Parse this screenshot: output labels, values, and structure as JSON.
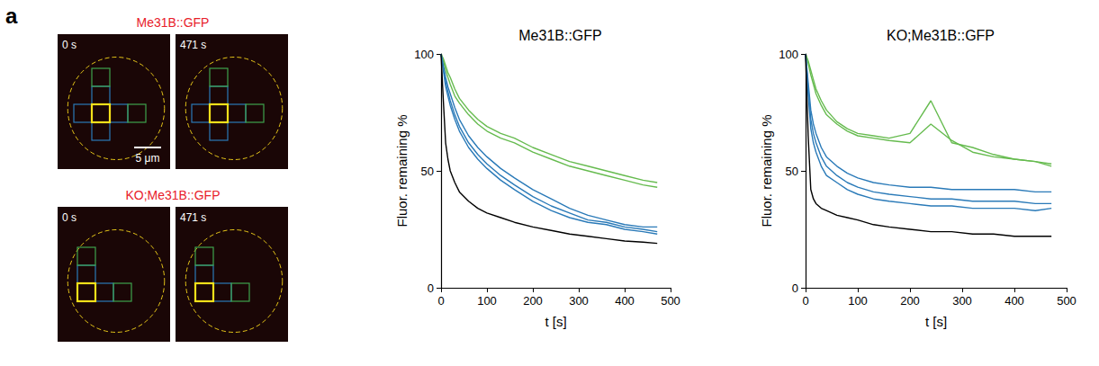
{
  "figure": {
    "panel_letter": "a",
    "images": [
      {
        "title": "Me31B::GFP",
        "frames": [
          "0 s",
          "471 s"
        ],
        "scale_bar": "5 μm"
      },
      {
        "title": "KO;Me31B::GFP",
        "frames": [
          "0 s",
          "471 s"
        ]
      }
    ]
  },
  "chart_data": [
    {
      "type": "line",
      "title": "Me31B::GFP",
      "x_label": "t [s]",
      "y_label": "Fluor. remaining %",
      "x": [
        0,
        5,
        10,
        15,
        20,
        30,
        40,
        60,
        80,
        100,
        130,
        160,
        200,
        240,
        280,
        320,
        360,
        400,
        440,
        471
      ],
      "xlim": [
        0,
        500
      ],
      "xticks": [
        0,
        100,
        200,
        300,
        400,
        500
      ],
      "ylim": [
        0,
        100
      ],
      "yticks": [
        0,
        50,
        100
      ],
      "grid": false,
      "series": [
        {
          "color": "#66bb4f",
          "values": [
            100,
            97,
            93,
            90,
            87,
            82,
            79,
            74,
            70,
            67,
            64,
            62,
            58,
            55,
            52,
            50,
            48,
            46,
            44,
            43
          ]
        },
        {
          "color": "#66bb4f",
          "values": [
            100,
            98,
            95,
            92,
            90,
            85,
            81,
            76,
            72,
            69,
            66,
            64,
            60,
            57,
            54,
            52,
            50,
            48,
            46,
            45
          ]
        },
        {
          "color": "#2a7ab8",
          "values": [
            100,
            93,
            86,
            82,
            78,
            72,
            67,
            60,
            55,
            51,
            46,
            42,
            37,
            33,
            30,
            28,
            27,
            25,
            24,
            23
          ]
        },
        {
          "color": "#2a7ab8",
          "values": [
            100,
            94,
            88,
            84,
            80,
            74,
            69,
            62,
            57,
            53,
            48,
            44,
            39,
            35,
            32,
            29,
            28,
            26,
            25,
            24
          ]
        },
        {
          "color": "#2a7ab8",
          "values": [
            100,
            95,
            90,
            86,
            83,
            77,
            72,
            65,
            60,
            56,
            51,
            47,
            42,
            38,
            34,
            31,
            29,
            27,
            26,
            26
          ]
        },
        {
          "color": "#000000",
          "values": [
            100,
            80,
            62,
            55,
            50,
            45,
            41,
            37,
            34,
            32,
            30,
            28,
            26,
            24.5,
            23,
            22,
            21,
            20,
            19.5,
            19
          ]
        }
      ]
    },
    {
      "type": "line",
      "title": "KO;Me31B::GFP",
      "x_label": "t [s]",
      "y_label": "Fluor. remaining %",
      "x": [
        0,
        5,
        10,
        15,
        20,
        30,
        40,
        60,
        80,
        100,
        130,
        160,
        200,
        240,
        280,
        320,
        360,
        400,
        440,
        471
      ],
      "xlim": [
        0,
        500
      ],
      "xticks": [
        0,
        100,
        200,
        300,
        400,
        500
      ],
      "ylim": [
        0,
        100
      ],
      "yticks": [
        0,
        50,
        100
      ],
      "grid": false,
      "series": [
        {
          "color": "#66bb4f",
          "values": [
            100,
            97,
            93,
            89,
            85,
            80,
            76,
            71,
            68,
            66,
            65,
            64,
            66,
            80,
            62,
            60,
            57,
            55,
            54,
            53
          ]
        },
        {
          "color": "#66bb4f",
          "values": [
            100,
            96,
            91,
            87,
            83,
            78,
            74,
            70,
            67,
            65,
            64,
            63,
            62,
            70,
            63,
            58,
            56,
            55,
            54,
            52
          ]
        },
        {
          "color": "#2a7ab8",
          "values": [
            100,
            88,
            76,
            70,
            66,
            60,
            56,
            52,
            49,
            47,
            45,
            44,
            43,
            43,
            42,
            42,
            42,
            42,
            41,
            41
          ]
        },
        {
          "color": "#2a7ab8",
          "values": [
            100,
            85,
            72,
            66,
            62,
            56,
            52,
            48,
            45,
            43,
            41,
            40,
            39,
            38,
            38,
            37,
            37,
            37,
            36,
            36
          ]
        },
        {
          "color": "#2a7ab8",
          "values": [
            100,
            83,
            68,
            62,
            58,
            52,
            48,
            45,
            42,
            40,
            38,
            37,
            36,
            35,
            35,
            34,
            34,
            34,
            33,
            34
          ]
        },
        {
          "color": "#000000",
          "values": [
            100,
            65,
            42,
            38,
            36,
            34,
            33,
            31,
            30,
            29,
            27,
            26,
            25,
            24,
            24,
            23,
            23,
            22,
            22,
            22
          ]
        }
      ]
    }
  ]
}
